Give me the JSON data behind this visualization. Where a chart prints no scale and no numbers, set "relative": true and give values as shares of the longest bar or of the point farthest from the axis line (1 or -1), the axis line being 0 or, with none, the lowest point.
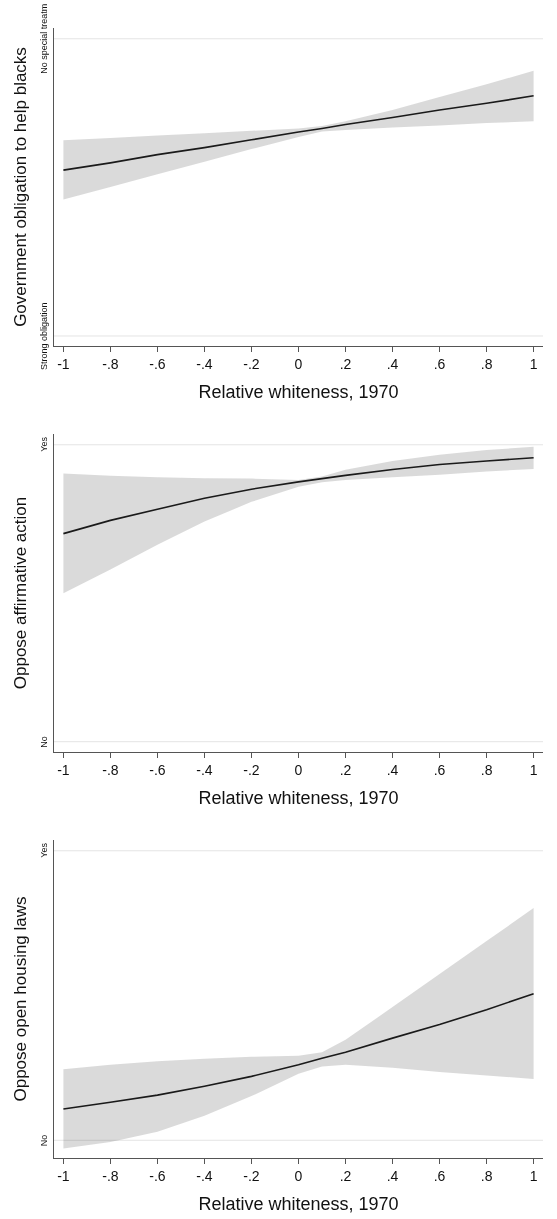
{
  "chart_data": [
    {
      "type": "line",
      "relative": true,
      "xlabel": "Relative whiteness, 1970",
      "ylabel": "Government obligation to help blacks",
      "x": [
        -1,
        -0.8,
        -0.6,
        -0.4,
        -0.2,
        0,
        0.1,
        0.2,
        0.4,
        0.6,
        0.8,
        1
      ],
      "series": [
        {
          "color": "#1a1a1a",
          "values": [
            0.703,
            0.732,
            0.765,
            0.793,
            0.824,
            0.855,
            0.869,
            0.885,
            0.913,
            0.943,
            0.97,
            1
          ],
          "upper": [
            0.822,
            0.831,
            0.841,
            0.85,
            0.86,
            0.869,
            0.879,
            0.898,
            0.943,
            0.995,
            1.046,
            1.1
          ],
          "lower": [
            0.586,
            0.635,
            0.686,
            0.736,
            0.787,
            0.835,
            0.857,
            0.863,
            0.873,
            0.881,
            0.891,
            0.898
          ]
        }
      ],
      "ref_lines": [
        {
          "axis": "y",
          "value": 0.04,
          "label": "Strong obligation",
          "color": "#e4e4e4"
        },
        {
          "axis": "y",
          "value": 1.228,
          "label": "No special treatm",
          "color": "#e4e4e4"
        }
      ],
      "xlim": [
        -1.04,
        1.04
      ],
      "xticks": [
        -1,
        {
          "value": -0.8,
          "label": "-.8"
        },
        {
          "value": -0.6,
          "label": "-.6"
        },
        {
          "value": -0.4,
          "label": "-.4"
        },
        {
          "value": -0.2,
          "label": "-.2"
        },
        0,
        {
          "value": 0.2,
          "label": ".2"
        },
        {
          "value": 0.4,
          "label": ".4"
        },
        {
          "value": 0.6,
          "label": ".6"
        },
        {
          "value": 0.8,
          "label": ".8"
        },
        1
      ]
    },
    {
      "type": "line",
      "relative": true,
      "xlabel": "Relative whiteness, 1970",
      "ylabel": "Oppose affirmative action",
      "x": [
        -1,
        -0.8,
        -0.6,
        -0.4,
        -0.2,
        0,
        0.1,
        0.2,
        0.4,
        0.6,
        0.8,
        1
      ],
      "series": [
        {
          "color": "#1a1a1a",
          "values": [
            0.742,
            0.787,
            0.825,
            0.862,
            0.893,
            0.918,
            0.929,
            0.94,
            0.96,
            0.977,
            0.989,
            1
          ],
          "upper": [
            0.946,
            0.939,
            0.934,
            0.93,
            0.929,
            0.924,
            0.936,
            0.959,
            0.989,
            1.01,
            1.026,
            1.037
          ],
          "lower": [
            0.539,
            0.62,
            0.704,
            0.783,
            0.85,
            0.901,
            0.917,
            0.924,
            0.934,
            0.942,
            0.953,
            0.962
          ]
        }
      ],
      "ref_lines": [
        {
          "axis": "y",
          "value": 0.035,
          "label": "No",
          "color": "#e4e4e4"
        },
        {
          "axis": "y",
          "value": 1.044,
          "label": "Yes",
          "color": "#e4e4e4"
        }
      ],
      "xlim": [
        -1.04,
        1.04
      ],
      "xticks": [
        -1,
        {
          "value": -0.8,
          "label": "-.8"
        },
        {
          "value": -0.6,
          "label": "-.6"
        },
        {
          "value": -0.4,
          "label": "-.4"
        },
        {
          "value": -0.2,
          "label": "-.2"
        },
        0,
        {
          "value": 0.2,
          "label": ".2"
        },
        {
          "value": 0.4,
          "label": ".4"
        },
        {
          "value": 0.6,
          "label": ".6"
        },
        {
          "value": 0.8,
          "label": ".8"
        },
        1
      ]
    },
    {
      "type": "line",
      "relative": true,
      "xlabel": "Relative whiteness, 1970",
      "ylabel": "Oppose open housing laws",
      "x": [
        -1,
        -0.8,
        -0.6,
        -0.4,
        -0.2,
        0,
        0.1,
        0.2,
        0.4,
        0.6,
        0.8,
        1
      ],
      "series": [
        {
          "color": "#1a1a1a",
          "values": [
            0.298,
            0.34,
            0.383,
            0.437,
            0.497,
            0.568,
            0.607,
            0.644,
            0.73,
            0.813,
            0.903,
            1
          ],
          "upper": [
            0.54,
            0.568,
            0.589,
            0.605,
            0.616,
            0.623,
            0.644,
            0.72,
            0.919,
            1.12,
            1.321,
            1.522
          ],
          "lower": [
            0.058,
            0.097,
            0.16,
            0.257,
            0.377,
            0.513,
            0.557,
            0.568,
            0.55,
            0.524,
            0.503,
            0.481
          ]
        }
      ],
      "ref_lines": [
        {
          "axis": "y",
          "value": 0.108,
          "label": "No",
          "color": "#e4e4e4"
        },
        {
          "axis": "y",
          "value": 1.871,
          "label": "Yes",
          "color": "#e4e4e4"
        }
      ],
      "xlim": [
        -1.04,
        1.04
      ],
      "xticks": [
        -1,
        {
          "value": -0.8,
          "label": "-.8"
        },
        {
          "value": -0.6,
          "label": "-.6"
        },
        {
          "value": -0.4,
          "label": "-.4"
        },
        {
          "value": -0.2,
          "label": "-.2"
        },
        0,
        {
          "value": 0.2,
          "label": ".2"
        },
        {
          "value": 0.4,
          "label": ".4"
        },
        {
          "value": 0.6,
          "label": ".6"
        },
        {
          "value": 0.8,
          "label": ".8"
        },
        1
      ]
    }
  ]
}
